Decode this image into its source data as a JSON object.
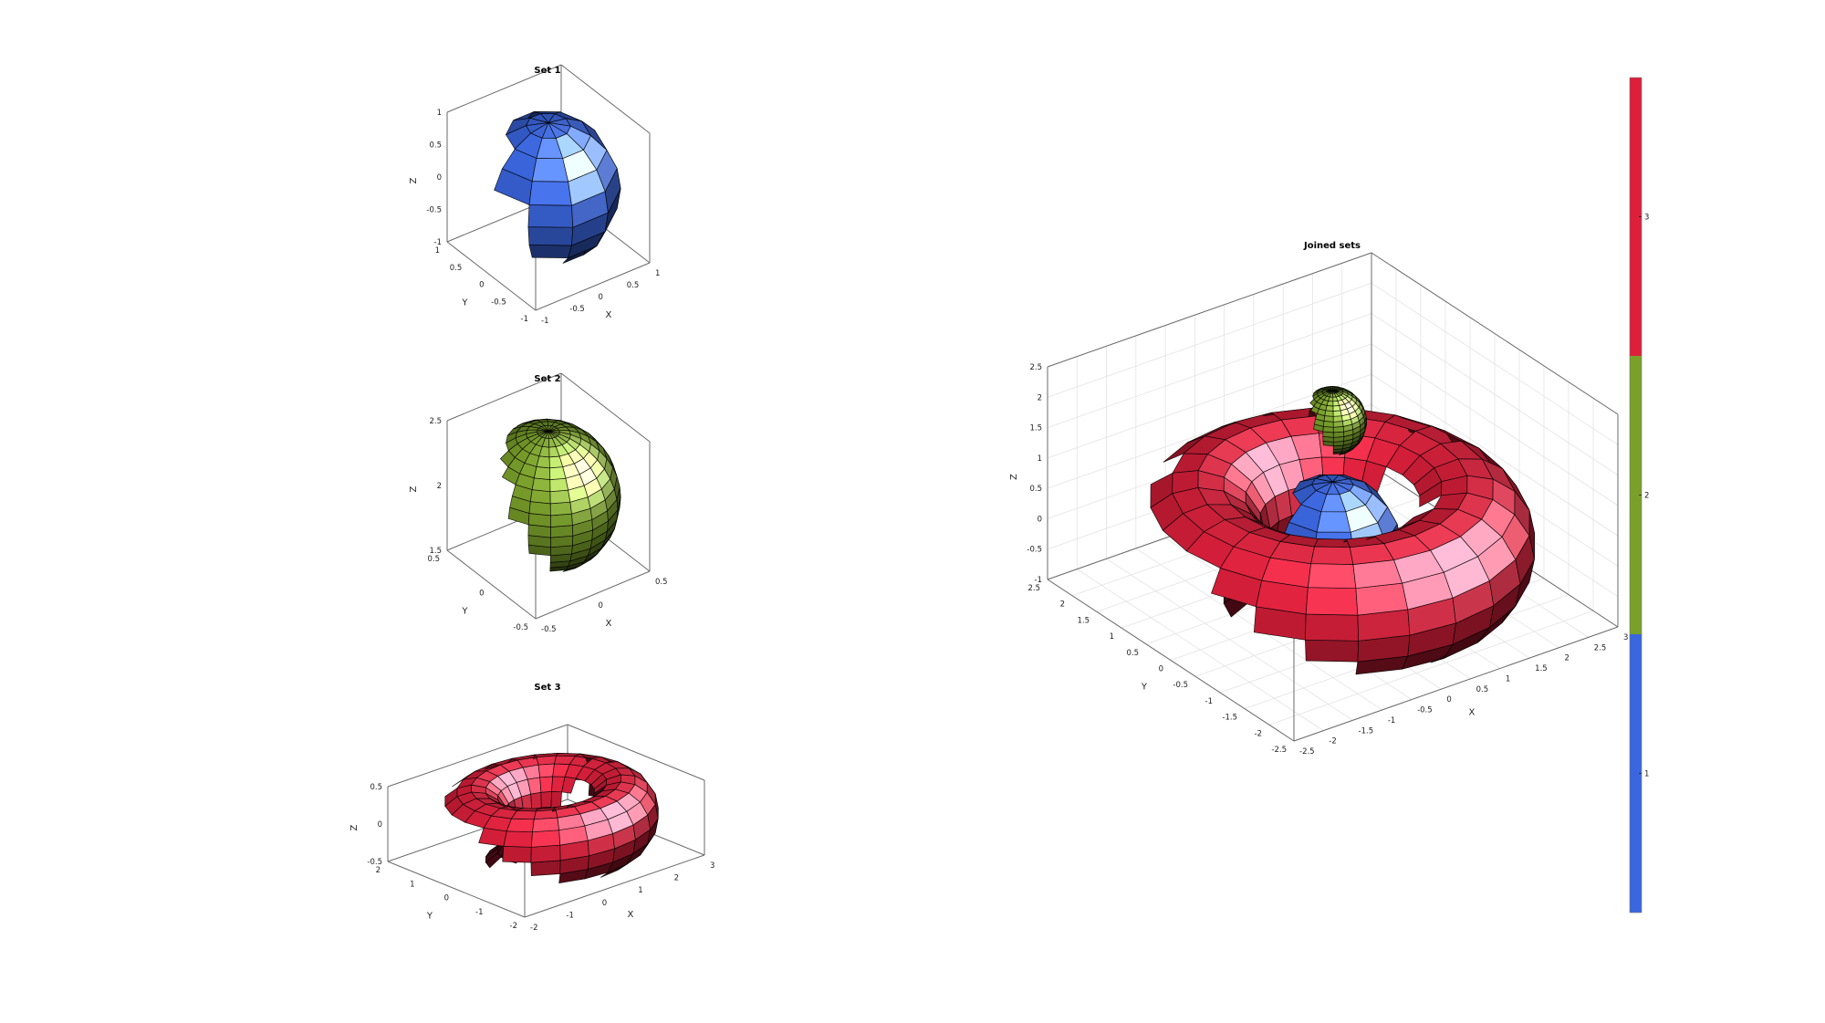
{
  "figure": {
    "colorbar": {
      "ticks": [
        "1",
        "2",
        "3"
      ],
      "colors": [
        "#3a66e0",
        "#7aa02a",
        "#dd1f3b"
      ]
    }
  },
  "chart_data": [
    {
      "type": "surface",
      "title": "Set 1",
      "shape": "sphere",
      "center": [
        0,
        0,
        0
      ],
      "radius": 1,
      "mesh": [
        10,
        10
      ],
      "color": "#3a66e0",
      "xlabel": "X",
      "ylabel": "Y",
      "zlabel": "Z",
      "xticks": [
        "-1",
        "-0.5",
        "0",
        "0.5",
        "1"
      ],
      "yticks": [
        "-1",
        "-0.5",
        "0",
        "0.5",
        "1"
      ],
      "zticks": [
        "-1",
        "-0.5",
        "0",
        "0.5",
        "1"
      ],
      "xlim": [
        -1,
        1
      ],
      "ylim": [
        -1,
        1
      ],
      "zlim": [
        -1,
        1
      ],
      "grid": false
    },
    {
      "type": "surface",
      "title": "Set 2",
      "shape": "sphere",
      "center": [
        0,
        0,
        2
      ],
      "radius": 0.5,
      "mesh": [
        20,
        20
      ],
      "color": "#7aa02a",
      "xlabel": "X",
      "ylabel": "Y",
      "zlabel": "Z",
      "xticks": [
        "-0.5",
        "0",
        "0.5"
      ],
      "yticks": [
        "-0.5",
        "0",
        "0.5"
      ],
      "zticks": [
        "1.5",
        "2",
        "2.5"
      ],
      "xlim": [
        -0.5,
        0.5
      ],
      "ylim": [
        -0.5,
        0.5
      ],
      "zlim": [
        1.5,
        2.5
      ],
      "grid": false
    },
    {
      "type": "surface",
      "title": "Set 3",
      "shape": "torus",
      "major_radius": 2,
      "minor_radius": 1,
      "mesh": [
        24,
        16
      ],
      "color": "#dd1f3b",
      "xlabel": "X",
      "ylabel": "Y",
      "zlabel": "Z",
      "xticks": [
        "-2",
        "-1",
        "0",
        "1",
        "2",
        "3"
      ],
      "yticks": [
        "-2",
        "-1",
        "0",
        "1",
        "2"
      ],
      "zticks": [
        "-0.5",
        "0",
        "0.5"
      ],
      "xlim": [
        -3,
        3
      ],
      "ylim": [
        -3,
        3
      ],
      "zlim": [
        -1,
        1
      ],
      "grid": false
    },
    {
      "type": "surface",
      "title": "Joined sets",
      "shapes": [
        "sphere",
        "sphere",
        "torus"
      ],
      "xlabel": "X",
      "ylabel": "Y",
      "zlabel": "Z",
      "xticks": [
        "-2.5",
        "-2",
        "-1.5",
        "-1",
        "-0.5",
        "0",
        "0.5",
        "1",
        "1.5",
        "2",
        "2.5",
        "3"
      ],
      "yticks": [
        "-2.5",
        "-2",
        "-1.5",
        "-1",
        "-0.5",
        "0",
        "0.5",
        "1",
        "1.5",
        "2",
        "2.5"
      ],
      "zticks": [
        "-1",
        "-0.5",
        "0",
        "0.5",
        "1",
        "1.5",
        "2",
        "2.5"
      ],
      "xlim": [
        -3,
        3
      ],
      "ylim": [
        -3,
        3
      ],
      "zlim": [
        -1,
        2.5
      ],
      "grid": true
    }
  ]
}
